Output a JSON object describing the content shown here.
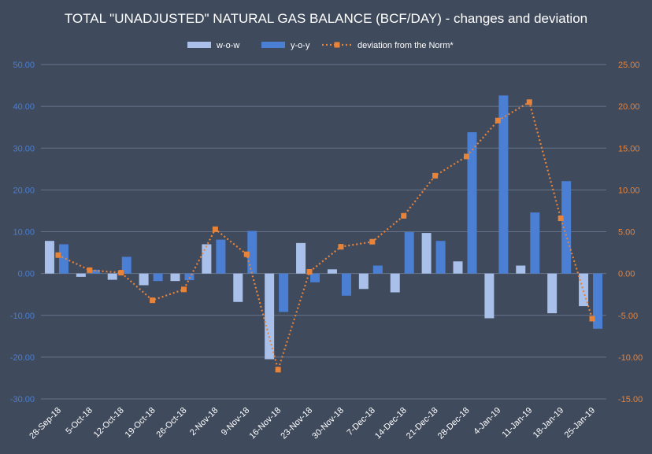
{
  "chart_data": {
    "type": "bar",
    "title": "TOTAL \"UNADJUSTED\" NATURAL GAS BALANCE (BCF/DAY) - changes and deviation",
    "categories": [
      "28-Sep-18",
      "5-Oct-18",
      "12-Oct-18",
      "19-Oct-18",
      "26-Oct-18",
      "2-Nov-18",
      "9-Nov-18",
      "16-Nov-18",
      "23-Nov-18",
      "30-Nov-18",
      "7-Dec-18",
      "14-Dec-18",
      "21-Dec-18",
      "28-Dec-18",
      "4-Jan-19",
      "11-Jan-19",
      "18-Jan-19",
      "25-Jan-19"
    ],
    "tick_labels": [
      "28-Sep-18",
      "5-Oct-18",
      "12-Oct-18",
      "19-Oct-18",
      "26-Oct-18",
      "2-Nov-18",
      "9-Nov-18",
      "16-Nov-18",
      "23-Nov-18",
      "30-Nov-18",
      "7-Dec-18",
      "14-Dec-18",
      "21-Dec-18",
      "28-Dec-18",
      "4-Jan-19",
      "11-Jan-19",
      "18-Jan-19",
      "25-Jan-19"
    ],
    "series": [
      {
        "name": "w-o-w",
        "type": "bar",
        "axis": "left",
        "color": "#a9c1ea",
        "values": [
          7.8,
          -0.8,
          -1.5,
          -2.8,
          -1.8,
          7.0,
          -6.8,
          -20.5,
          7.3,
          1.0,
          -3.7,
          -4.5,
          9.7,
          2.9,
          -10.7,
          1.9,
          -9.5,
          -7.8
        ]
      },
      {
        "name": "y-o-y",
        "type": "bar",
        "axis": "left",
        "color": "#4a7fd4",
        "values": [
          7.0,
          0.9,
          4.0,
          -1.8,
          -1.6,
          8.1,
          10.2,
          -9.2,
          -2.1,
          -5.3,
          1.9,
          9.9,
          7.8,
          33.8,
          42.6,
          14.6,
          22.1,
          -13.2
        ]
      },
      {
        "name": "deviation from the Norm*",
        "type": "line",
        "axis": "right",
        "color": "#e8833a",
        "values": [
          2.2,
          0.4,
          0.1,
          -3.2,
          -1.9,
          5.3,
          2.3,
          -11.5,
          0.2,
          3.2,
          3.8,
          6.9,
          11.7,
          14.0,
          18.3,
          20.5,
          6.6,
          -5.4
        ]
      }
    ],
    "left_axis": {
      "min": -30,
      "max": 50,
      "step": 10,
      "labels": [
        "50.00",
        "40.00",
        "30.00",
        "20.00",
        "10.00",
        "0.00",
        "-10.00",
        "-20.00",
        "-30.00"
      ]
    },
    "right_axis": {
      "min": -15,
      "max": 25,
      "step": 5,
      "labels": [
        "25.00",
        "20.00",
        "15.00",
        "10.00",
        "5.00",
        "0.00",
        "-5.00",
        "-10.00",
        "-15.00"
      ]
    },
    "grid": true,
    "legend_position": "top",
    "xlabel": "",
    "ylabel": ""
  }
}
